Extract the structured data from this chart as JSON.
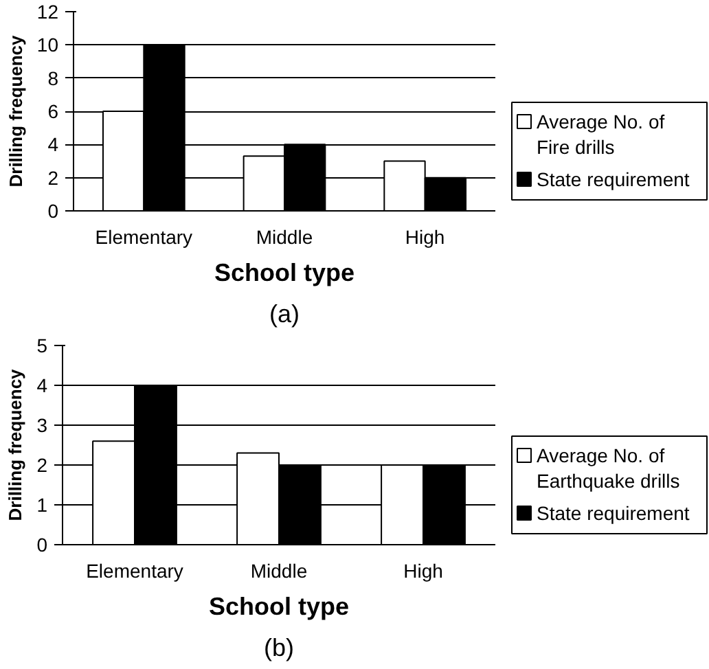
{
  "chart_data": [
    {
      "type": "bar",
      "categories": [
        "Elementary",
        "Middle",
        "High"
      ],
      "xlabel": "School type",
      "ylabel": "Drilling frequency",
      "ylim": [
        0,
        12
      ],
      "yticks": [
        0,
        2,
        4,
        6,
        8,
        10,
        12
      ],
      "grid": "y",
      "legend": "right",
      "annotations": [
        "(a)"
      ],
      "series": [
        {
          "name": "Average No. of Fire drills",
          "color": "#ffffff",
          "values": [
            6,
            3.3,
            3
          ]
        },
        {
          "name": "State requirement",
          "color": "#000000",
          "values": [
            10,
            4,
            2
          ]
        }
      ]
    },
    {
      "type": "bar",
      "categories": [
        "Elementary",
        "Middle",
        "High"
      ],
      "xlabel": "School type",
      "ylabel": "Drilling frequency",
      "ylim": [
        0,
        5
      ],
      "yticks": [
        0,
        1,
        2,
        3,
        4,
        5
      ],
      "grid": "y",
      "legend": "right",
      "annotations": [
        "(b)"
      ],
      "series": [
        {
          "name": "Average No. of Earthquake drills",
          "color": "#ffffff",
          "values": [
            2.6,
            2.3,
            2
          ]
        },
        {
          "name": "State requirement",
          "color": "#000000",
          "values": [
            4,
            2,
            2
          ]
        }
      ]
    }
  ]
}
